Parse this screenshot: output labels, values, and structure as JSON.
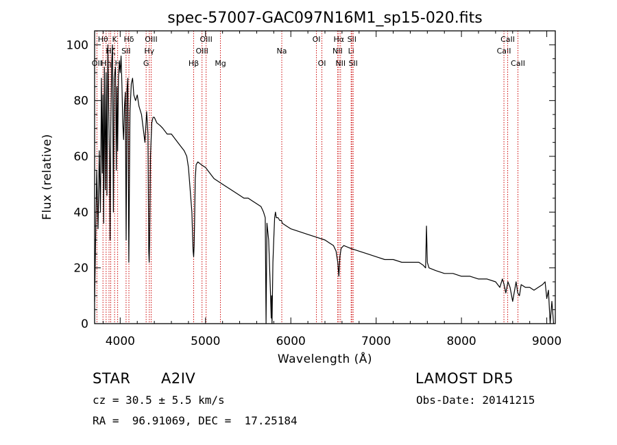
{
  "chart_data": {
    "type": "line",
    "title": "spec-57007-GAC097N16M1_sp15-020.fits",
    "xlabel": "Wavelength (Å)",
    "ylabel": "Flux (relative)",
    "xlim": [
      3700,
      9100
    ],
    "ylim": [
      0,
      105
    ],
    "xticks": [
      4000,
      5000,
      6000,
      7000,
      8000,
      9000
    ],
    "yticks": [
      0,
      20,
      40,
      60,
      80,
      100
    ],
    "grid": false,
    "line_color": "#000000",
    "marker_color": "#cc0000",
    "series": [
      {
        "x": [
          3700,
          3715,
          3725,
          3740,
          3755,
          3768,
          3780,
          3790,
          3798,
          3806,
          3815,
          3825,
          3835,
          3845,
          3855,
          3865,
          3875,
          3882,
          3890,
          3900,
          3910,
          3920,
          3930,
          3945,
          3955,
          3962,
          3970,
          3980,
          3990,
          4000,
          4010,
          4020,
          4030,
          4040,
          4050,
          4060,
          4070,
          4080,
          4090,
          4101,
          4115,
          4130,
          4145,
          4160,
          4180,
          4200,
          4220,
          4250,
          4270,
          4290,
          4310,
          4325,
          4335,
          4340,
          4345,
          4355,
          4370,
          4385,
          4400,
          4430,
          4470,
          4500,
          4550,
          4600,
          4650,
          4700,
          4750,
          4780,
          4800,
          4820,
          4840,
          4850,
          4855,
          4861,
          4867,
          4872,
          4880,
          4890,
          4910,
          4950,
          5000,
          5050,
          5100,
          5200,
          5300,
          5400,
          5450,
          5500,
          5550,
          5600,
          5650,
          5680,
          5700,
          5710,
          5720,
          5740,
          5760,
          5770,
          5775,
          5780,
          5790,
          5800,
          5810,
          5820,
          5830,
          5850,
          5870,
          5890,
          5900,
          5950,
          6000,
          6100,
          6200,
          6300,
          6400,
          6450,
          6500,
          6530,
          6550,
          6563,
          6575,
          6590,
          6620,
          6700,
          6800,
          6900,
          7000,
          7100,
          7200,
          7300,
          7400,
          7500,
          7550,
          7580,
          7590,
          7600,
          7620,
          7700,
          7800,
          7900,
          8000,
          8100,
          8200,
          8300,
          8400,
          8450,
          8480,
          8500,
          8520,
          8545,
          8570,
          8600,
          8640,
          8660,
          8680,
          8700,
          8750,
          8800,
          8850,
          8900,
          8950,
          8980,
          9000,
          9020,
          9040,
          9060,
          9080
        ],
        "y": [
          8,
          36,
          55,
          34,
          62,
          40,
          88,
          54,
          82,
          36,
          92,
          48,
          90,
          46,
          100,
          78,
          58,
          30,
          70,
          93,
          100,
          40,
          88,
          92,
          55,
          85,
          62,
          88,
          94,
          90,
          96,
          86,
          72,
          66,
          78,
          83,
          30,
          84,
          88,
          22,
          76,
          86,
          88,
          82,
          80,
          82,
          78,
          75,
          70,
          65,
          76,
          68,
          26,
          22,
          30,
          60,
          72,
          74,
          74,
          72,
          71,
          70,
          68,
          68,
          66,
          64,
          62,
          60,
          56,
          48,
          40,
          30,
          26,
          24,
          28,
          36,
          52,
          57,
          58,
          57,
          56,
          54,
          52,
          50,
          48,
          46,
          45,
          45,
          44,
          43,
          42,
          40,
          38,
          0,
          36,
          30,
          12,
          2,
          10,
          0,
          22,
          30,
          38,
          40,
          38,
          38,
          37,
          37,
          36,
          35,
          34,
          33,
          32,
          31,
          30,
          29,
          28,
          26,
          22,
          17,
          24,
          27,
          28,
          27,
          26,
          25,
          24,
          23,
          23,
          22,
          22,
          22,
          21,
          20,
          35,
          22,
          20,
          19,
          18,
          18,
          17,
          17,
          16,
          16,
          15,
          13,
          16,
          14,
          11,
          15,
          13,
          8,
          15,
          11,
          10,
          14,
          13,
          13,
          12,
          13,
          14,
          15,
          9,
          12,
          0,
          8,
          0
        ]
      }
    ],
    "lines": [
      {
        "label": "Hβ",
        "x": 4861
      }
    ],
    "markers": [
      {
        "x": 3727,
        "label": "OII",
        "row": 3
      },
      {
        "x": 3798,
        "label": "Hθ",
        "row": 1
      },
      {
        "x": 3835,
        "label": "Hη",
        "row": 3
      },
      {
        "x": 3869,
        "label": "",
        "row": 1
      },
      {
        "x": 3889,
        "label": "Hζ",
        "row": 2
      },
      {
        "x": 3934,
        "label": "K",
        "row": 1
      },
      {
        "x": 3970,
        "label": "H",
        "row": 3
      },
      {
        "x": 4069,
        "label": "SII",
        "row": 2
      },
      {
        "x": 4102,
        "label": "Hδ",
        "row": 1
      },
      {
        "x": 4304,
        "label": "G",
        "row": 3
      },
      {
        "x": 4341,
        "label": "Hγ",
        "row": 2
      },
      {
        "x": 4363,
        "label": "OIII",
        "row": 1
      },
      {
        "x": 4861,
        "label": "Hβ",
        "row": 3
      },
      {
        "x": 4959,
        "label": "OIII",
        "row": 2
      },
      {
        "x": 5007,
        "label": "OIII",
        "row": 1
      },
      {
        "x": 5175,
        "label": "Mg",
        "row": 3
      },
      {
        "x": 5894,
        "label": "Na",
        "row": 2
      },
      {
        "x": 6300,
        "label": "OI",
        "row": 1
      },
      {
        "x": 6364,
        "label": "OI",
        "row": 3
      },
      {
        "x": 6548,
        "label": "NII",
        "row": 2
      },
      {
        "x": 6563,
        "label": "Hα",
        "row": 1
      },
      {
        "x": 6583,
        "label": "NII",
        "row": 3
      },
      {
        "x": 6707,
        "label": "Li",
        "row": 2
      },
      {
        "x": 6716,
        "label": "SII",
        "row": 1
      },
      {
        "x": 6731,
        "label": "SII",
        "row": 3
      },
      {
        "x": 8498,
        "label": "CaII",
        "row": 2
      },
      {
        "x": 8542,
        "label": "CaII",
        "row": 1
      },
      {
        "x": 8662,
        "label": "CaII",
        "row": 3
      }
    ]
  },
  "info": {
    "object_type": "STAR",
    "subclass": "A2IV",
    "survey": "LAMOST DR5",
    "redshift_text": "cz = 30.5 ± 5.5 km/s",
    "obs_date": "Obs-Date: 20141215",
    "coords": "RA =  96.91069, DEC =  17.25184"
  }
}
